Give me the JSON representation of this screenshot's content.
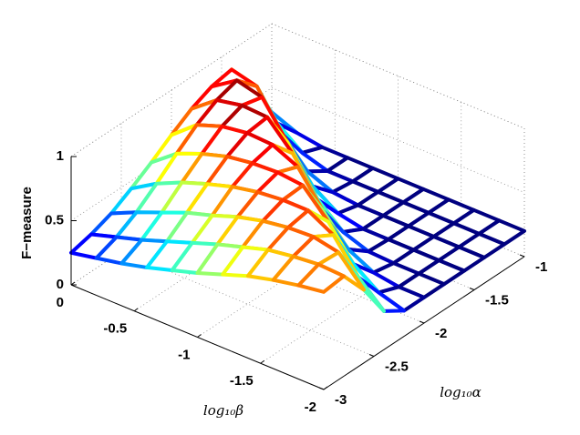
{
  "chart_data": {
    "type": "surface",
    "zlabel": "F−measure",
    "xlabel": "log₁₀β",
    "ylabel": "log₁₀α",
    "x": [
      0,
      -0.2,
      -0.4,
      -0.6,
      -0.8,
      -1,
      -1.2,
      -1.4,
      -1.6,
      -1.8,
      -2
    ],
    "y": [
      -3,
      -2.8,
      -2.6,
      -2.4,
      -2.2,
      -2,
      -1.8,
      -1.6,
      -1.4,
      -1.2,
      -1
    ],
    "z": [
      [
        0.25,
        0.29,
        0.35,
        0.44,
        0.54,
        0.65,
        0.75,
        0.82,
        0.85,
        0.62,
        0.31
      ],
      [
        0.29,
        0.35,
        0.44,
        0.56,
        0.69,
        0.81,
        0.9,
        0.95,
        0.8,
        0.41,
        0.23
      ],
      [
        0.33,
        0.41,
        0.52,
        0.65,
        0.77,
        0.88,
        0.94,
        0.9,
        0.51,
        0.26,
        0.2
      ],
      [
        0.38,
        0.48,
        0.6,
        0.72,
        0.83,
        0.91,
        0.93,
        0.63,
        0.3,
        0.2,
        0.2
      ],
      [
        0.44,
        0.55,
        0.66,
        0.78,
        0.86,
        0.9,
        0.73,
        0.37,
        0.22,
        0.2,
        0.2
      ],
      [
        0.5,
        0.62,
        0.73,
        0.82,
        0.87,
        0.81,
        0.45,
        0.24,
        0.2,
        0.2,
        0.2
      ],
      [
        0.57,
        0.68,
        0.78,
        0.84,
        0.85,
        0.55,
        0.28,
        0.2,
        0.2,
        0.2,
        0.2
      ],
      [
        0.64,
        0.74,
        0.81,
        0.84,
        0.65,
        0.33,
        0.21,
        0.2,
        0.2,
        0.2,
        0.2
      ],
      [
        0.69,
        0.77,
        0.82,
        0.73,
        0.4,
        0.23,
        0.2,
        0.2,
        0.2,
        0.2,
        0.2
      ],
      [
        0.73,
        0.79,
        0.78,
        0.48,
        0.26,
        0.2,
        0.2,
        0.2,
        0.2,
        0.2,
        0.2
      ],
      [
        0.76,
        0.78,
        0.57,
        0.3,
        0.2,
        0.2,
        0.2,
        0.2,
        0.2,
        0.2,
        0.2
      ]
    ],
    "xlim": [
      0,
      -2
    ],
    "ylim": [
      -3,
      -1
    ],
    "zlim": [
      0,
      1
    ],
    "xticks": [
      0,
      -0.5,
      -1,
      -1.5,
      -2
    ],
    "yticks": [
      -3,
      -2.5,
      -2,
      -1.5,
      -1
    ],
    "zticks": [
      0,
      0.5,
      1
    ],
    "colormap": "jet",
    "grid": true,
    "face_color": "#ffffff"
  }
}
